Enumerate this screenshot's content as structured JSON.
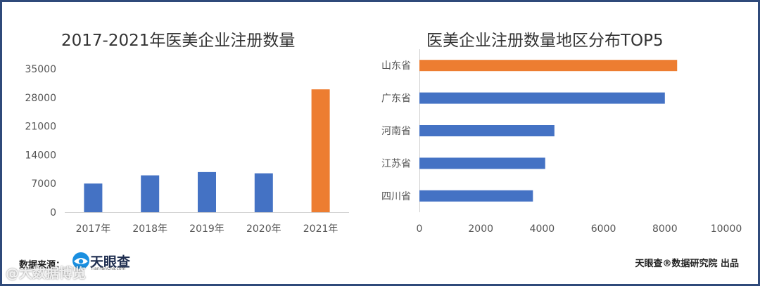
{
  "chart_data": [
    {
      "type": "bar",
      "title": "2017-2021年医美企业注册数量",
      "categories": [
        "2017年",
        "2018年",
        "2019年",
        "2020年",
        "2021年"
      ],
      "values": [
        7000,
        9000,
        9800,
        9500,
        30000
      ],
      "yticks": [
        "0",
        "7000",
        "14000",
        "21000",
        "28000",
        "35000"
      ],
      "ylim": [
        0,
        35000
      ],
      "grid": false,
      "colors": [
        "#4472c4",
        "#4472c4",
        "#4472c4",
        "#4472c4",
        "#ed7d31"
      ]
    },
    {
      "type": "bar",
      "orientation": "horizontal",
      "title": "医美企业注册数量地区分布TOP5",
      "categories": [
        "山东省",
        "广东省",
        "河南省",
        "江苏省",
        "四川省"
      ],
      "values": [
        8400,
        8000,
        4400,
        4100,
        3700
      ],
      "xticks": [
        "0",
        "2000",
        "4000",
        "6000",
        "8000",
        "10000"
      ],
      "xlim": [
        0,
        10000
      ],
      "grid": false,
      "colors": [
        "#ed7d31",
        "#4472c4",
        "#4472c4",
        "#4472c4",
        "#4472c4"
      ]
    }
  ],
  "footer": {
    "source_label": "数据来源：",
    "logo_text": "天眼查",
    "logo_sub": "TianYanCha.com",
    "credit": "天眼查®数据研究院 出品",
    "watermark": "@大数据博览"
  }
}
